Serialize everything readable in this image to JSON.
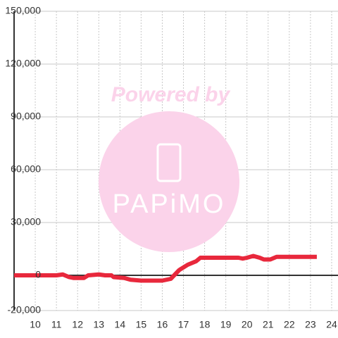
{
  "chart_data": {
    "type": "line",
    "x": [
      9,
      10,
      10.5,
      11,
      11.3,
      11.6,
      11.8,
      12.3,
      12.5,
      13,
      13.3,
      13.6,
      13.7,
      14.2,
      14.5,
      15,
      16,
      16.4,
      16.8,
      17.2,
      17.6,
      17.8,
      18,
      19,
      19.6,
      19.8,
      20,
      20.3,
      20.6,
      20.8,
      21.1,
      21.4,
      22,
      23.3
    ],
    "series": [
      {
        "color": "#e8283c",
        "values": [
          0,
          0,
          0,
          0,
          500,
          -1000,
          -1500,
          -1500,
          0,
          500,
          0,
          0,
          -1000,
          -1500,
          -2500,
          -3000,
          -3000,
          -2000,
          3000,
          6000,
          8000,
          10000,
          10000,
          10000,
          10000,
          9500,
          10000,
          11000,
          10000,
          9000,
          9000,
          10500,
          10500,
          10500
        ]
      }
    ],
    "xlim": [
      9,
      24.3
    ],
    "xticks": [
      10,
      11,
      12,
      13,
      14,
      15,
      16,
      17,
      18,
      19,
      20,
      21,
      22,
      23,
      24
    ],
    "ylim": [
      -20000,
      150000
    ],
    "yticks": [
      {
        "value": -20000,
        "label": "-20,000"
      },
      0,
      {
        "value": 30000,
        "label": "30,000"
      },
      {
        "value": 60000,
        "label": "60,000"
      },
      {
        "value": 90000,
        "label": "90,000"
      },
      {
        "value": 120000,
        "label": "120,000"
      },
      {
        "value": 150000,
        "label": "150,000"
      }
    ],
    "grid": true,
    "watermark": {
      "text": "Powered by",
      "logo": "PAPiMO"
    }
  }
}
